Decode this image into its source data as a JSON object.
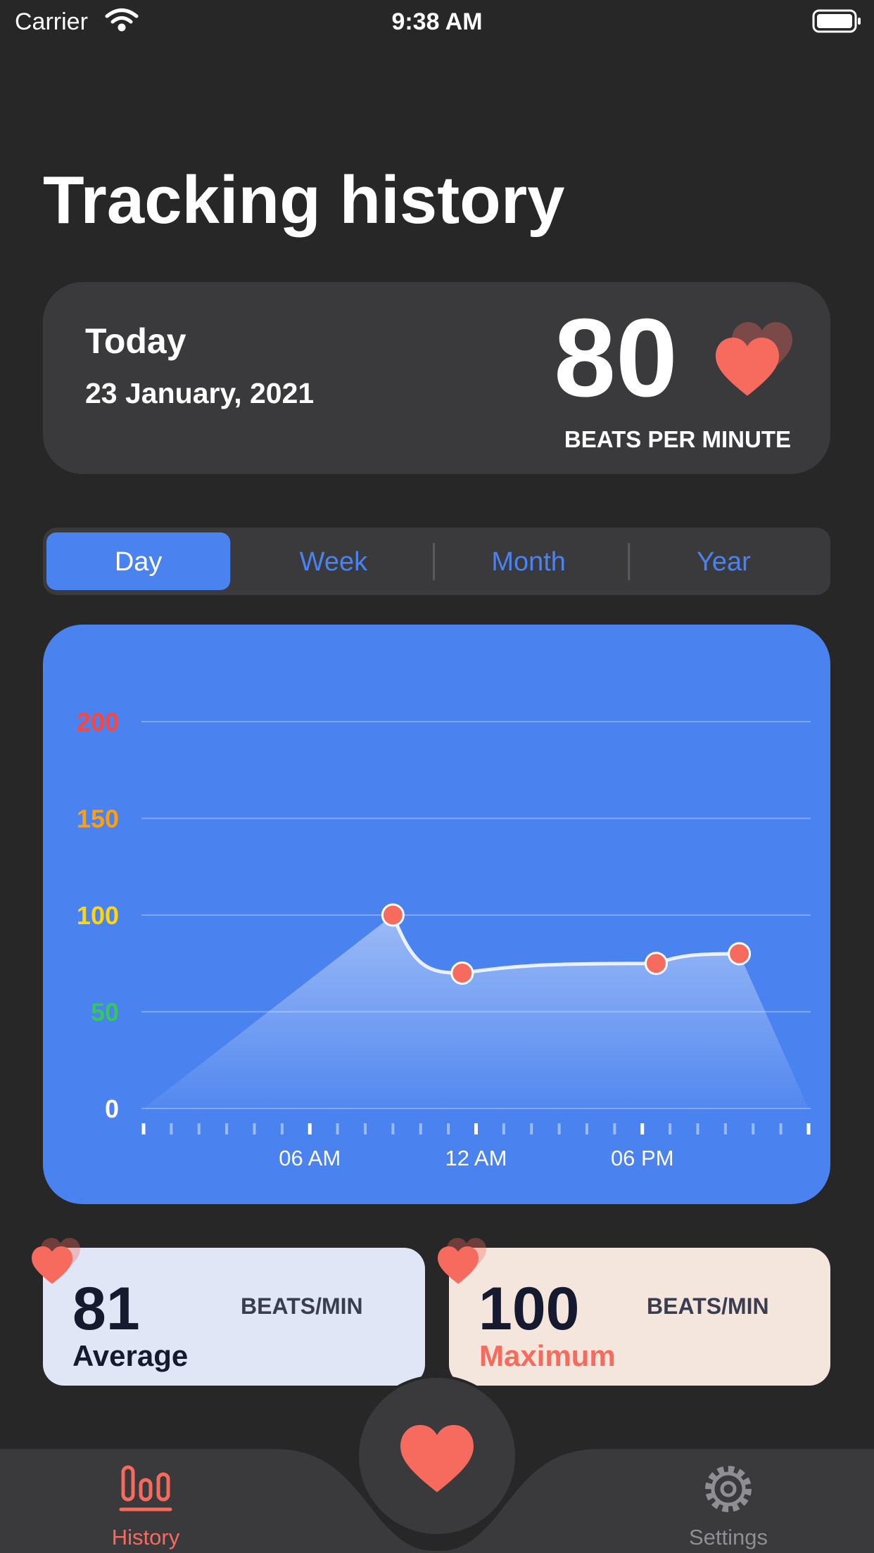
{
  "status_bar": {
    "carrier": "Carrier",
    "time": "9:38 AM"
  },
  "header": {
    "title": "Tracking history"
  },
  "today_card": {
    "label": "Today",
    "date": "23 January, 2021",
    "bpm": "80",
    "unit": "BEATS PER MINUTE"
  },
  "segments": {
    "items": [
      "Day",
      "Week",
      "Month",
      "Year"
    ],
    "selected": 0
  },
  "chart_data": {
    "type": "line",
    "x": [
      9,
      11.5,
      18.5,
      21.5
    ],
    "series": [
      {
        "values": [
          100,
          70,
          75,
          80
        ],
        "color": "#ffffff",
        "marker_color": "#f76b5e"
      }
    ],
    "xlim": [
      0,
      24
    ],
    "xticks": [
      {
        "value": 6,
        "label": "06 AM"
      },
      {
        "value": 12,
        "label": "12 AM"
      },
      {
        "value": 18,
        "label": "06 PM"
      }
    ],
    "minor_xtick_step": 1,
    "ylim": [
      0,
      200
    ],
    "yticks": [
      0,
      50,
      100,
      150,
      200
    ],
    "ytick_colors": [
      "#ffffff",
      "#34c759",
      "#ffd60a",
      "#ff9f0a",
      "#ff453a"
    ],
    "grid": true
  },
  "stats": [
    {
      "value": "81",
      "unit": "BEATS/MIN",
      "label": "Average"
    },
    {
      "value": "100",
      "unit": "BEATS/MIN",
      "label": "Maximum"
    }
  ],
  "tab_bar": {
    "items": [
      "History",
      "Settings"
    ]
  }
}
